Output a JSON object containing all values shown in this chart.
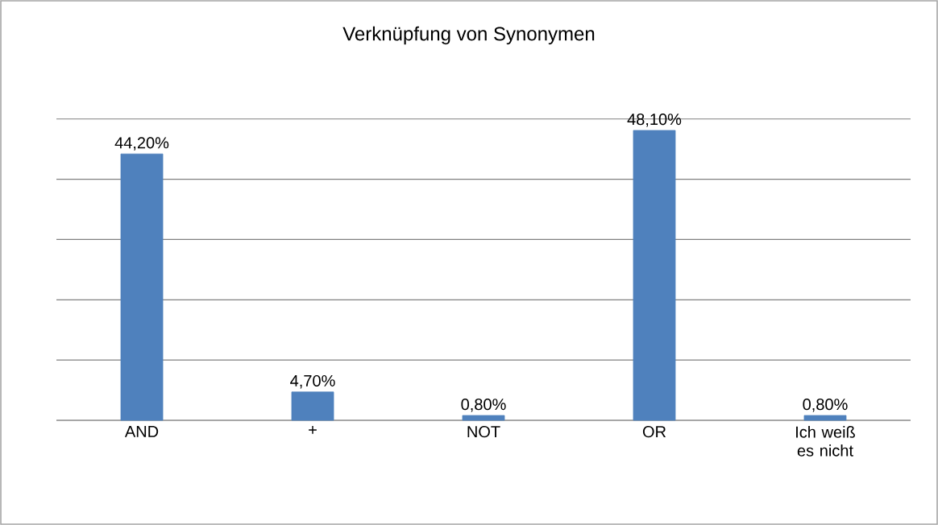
{
  "chart_data": {
    "type": "bar",
    "title": "Verknüpfung von Synonymen",
    "categories": [
      "AND",
      "+",
      "NOT",
      "OR",
      "Ich weiß es nicht"
    ],
    "values": [
      44.2,
      4.7,
      0.8,
      48.1,
      0.8
    ],
    "value_labels": [
      "44,20%",
      "4,70%",
      "0,80%",
      "48,10%",
      "0,80%"
    ],
    "color": "#4f81bd",
    "grid": "y",
    "tick_labels": "x"
  }
}
